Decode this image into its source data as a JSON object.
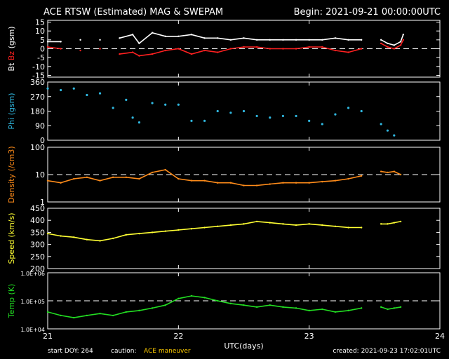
{
  "header": {
    "title": "ACE RTSW (Estimated) MAG & SWEPAM",
    "begin": "Begin: 2021-09-21 00:00:00UTC"
  },
  "footer": {
    "start_doy_label": "start DOY: 264",
    "caution_label": "caution:",
    "caution_text": "ACE maneuver",
    "created": "created: 2021-09-23 17:02:01UTC"
  },
  "colors": {
    "background": "#000000",
    "axis": "#ffffff",
    "bt": "#ffffff",
    "bz": "#ff2020",
    "phi": "#30b8e0",
    "density": "#ff8c1a",
    "speed": "#ffff33",
    "temp": "#22dd22"
  },
  "chart_data": [
    {
      "type": "line",
      "panel": "mag-field",
      "ylabel_parts": [
        "Bt",
        "Bz",
        "(gsm)"
      ],
      "yticks": [
        15,
        10,
        5,
        0,
        -5,
        -10,
        -15
      ],
      "ylim": [
        -16,
        16
      ],
      "reference_line": 0,
      "xlim": [
        21,
        24
      ],
      "series": [
        {
          "name": "Bt",
          "color": "#ffffff",
          "x": [
            21.0,
            21.1,
            21.25,
            21.4,
            21.55,
            21.65,
            21.7,
            21.8,
            21.9,
            22.0,
            22.1,
            22.2,
            22.3,
            22.4,
            22.5,
            22.6,
            22.7,
            22.8,
            22.9,
            23.0,
            23.1,
            23.2,
            23.3,
            23.4,
            23.55,
            23.6,
            23.65,
            23.7,
            23.72
          ],
          "y": [
            4,
            4,
            5,
            5,
            6,
            8,
            3,
            9,
            7,
            7,
            8,
            6,
            6,
            5,
            6,
            5,
            5,
            5,
            5,
            5,
            5,
            6,
            5,
            5,
            5,
            3,
            2,
            4,
            8
          ]
        },
        {
          "name": "Bz",
          "color": "#ff2020",
          "x": [
            21.0,
            21.1,
            21.25,
            21.4,
            21.55,
            21.65,
            21.7,
            21.8,
            21.9,
            22.0,
            22.1,
            22.2,
            22.3,
            22.4,
            22.5,
            22.6,
            22.7,
            22.8,
            22.9,
            23.0,
            23.1,
            23.2,
            23.3,
            23.4,
            23.55,
            23.6,
            23.65,
            23.7,
            23.72
          ],
          "y": [
            1,
            0,
            -1,
            0,
            -3,
            -2,
            -4,
            -3,
            -1,
            0,
            -3,
            -1,
            -2,
            0,
            1,
            1,
            0,
            0,
            0,
            1,
            1,
            -1,
            -2,
            0,
            3,
            1,
            0,
            2,
            5
          ]
        }
      ]
    },
    {
      "type": "scatter",
      "panel": "phi",
      "ylabel": "Phi (gsm)",
      "yticks": [
        360,
        270,
        180,
        90,
        0
      ],
      "ylim": [
        0,
        360
      ],
      "xlim": [
        21,
        24
      ],
      "series": [
        {
          "name": "Phi",
          "color": "#30b8e0",
          "x": [
            21.0,
            21.1,
            21.2,
            21.3,
            21.4,
            21.5,
            21.6,
            21.65,
            21.7,
            21.8,
            21.9,
            22.0,
            22.1,
            22.2,
            22.3,
            22.4,
            22.5,
            22.6,
            22.7,
            22.8,
            22.9,
            23.0,
            23.1,
            23.2,
            23.3,
            23.4,
            23.55,
            23.6,
            23.65
          ],
          "y": [
            320,
            310,
            320,
            280,
            290,
            200,
            250,
            140,
            110,
            230,
            220,
            220,
            120,
            120,
            180,
            170,
            180,
            150,
            140,
            150,
            150,
            120,
            100,
            160,
            200,
            180,
            100,
            60,
            30
          ]
        }
      ]
    },
    {
      "type": "line",
      "panel": "density",
      "ylabel": "Density (/cm3)",
      "yticks": [
        "100",
        "10",
        "1"
      ],
      "ylim": [
        1,
        100
      ],
      "yscale": "log",
      "reference_line": 10,
      "xlim": [
        21,
        24
      ],
      "series": [
        {
          "name": "Density",
          "color": "#ff8c1a",
          "x": [
            21.0,
            21.1,
            21.2,
            21.3,
            21.4,
            21.5,
            21.6,
            21.7,
            21.8,
            21.9,
            22.0,
            22.1,
            22.2,
            22.3,
            22.4,
            22.5,
            22.6,
            22.7,
            22.8,
            22.9,
            23.0,
            23.1,
            23.2,
            23.3,
            23.4,
            23.55,
            23.6,
            23.65,
            23.7
          ],
          "y": [
            6,
            5,
            7,
            8,
            6,
            8,
            8,
            7,
            12,
            15,
            7,
            6,
            6,
            5,
            5,
            4,
            4,
            4.5,
            5,
            5,
            5,
            5.5,
            6,
            7,
            9,
            13,
            12,
            13,
            10
          ]
        }
      ]
    },
    {
      "type": "line",
      "panel": "speed",
      "ylabel": "Speed (km/s)",
      "yticks": [
        450,
        400,
        350,
        300,
        250,
        200
      ],
      "ylim": [
        200,
        450
      ],
      "xlim": [
        21,
        24
      ],
      "series": [
        {
          "name": "Speed",
          "color": "#ffff33",
          "x": [
            21.0,
            21.1,
            21.2,
            21.3,
            21.4,
            21.5,
            21.6,
            21.7,
            21.8,
            21.9,
            22.0,
            22.1,
            22.2,
            22.3,
            22.4,
            22.5,
            22.6,
            22.7,
            22.8,
            22.9,
            23.0,
            23.1,
            23.2,
            23.3,
            23.4,
            23.55,
            23.6,
            23.65,
            23.7
          ],
          "y": [
            345,
            335,
            330,
            320,
            315,
            325,
            340,
            345,
            350,
            355,
            360,
            365,
            370,
            375,
            380,
            385,
            395,
            390,
            385,
            380,
            385,
            380,
            375,
            370,
            370,
            385,
            385,
            390,
            395
          ]
        }
      ]
    },
    {
      "type": "line",
      "panel": "temp",
      "ylabel": "Temp (K)",
      "yticks": [
        "1.0E+06",
        "1.0E+05",
        "1.0E+04"
      ],
      "ylim": [
        10000,
        1000000
      ],
      "yscale": "log",
      "reference_line": 100000,
      "xlim": [
        21,
        24
      ],
      "xticks": [
        21,
        22,
        23,
        24
      ],
      "xlabel": "UTC(days)",
      "series": [
        {
          "name": "Temp",
          "color": "#22dd22",
          "x": [
            21.0,
            21.1,
            21.2,
            21.3,
            21.4,
            21.5,
            21.6,
            21.7,
            21.8,
            21.9,
            22.0,
            22.1,
            22.2,
            22.3,
            22.4,
            22.5,
            22.6,
            22.7,
            22.8,
            22.9,
            23.0,
            23.1,
            23.2,
            23.3,
            23.4,
            23.55,
            23.6,
            23.65,
            23.7
          ],
          "y": [
            40000,
            30000,
            25000,
            30000,
            35000,
            30000,
            40000,
            45000,
            55000,
            70000,
            120000,
            150000,
            130000,
            100000,
            80000,
            70000,
            60000,
            70000,
            60000,
            55000,
            45000,
            50000,
            40000,
            45000,
            55000,
            60000,
            50000,
            55000,
            60000
          ]
        }
      ]
    }
  ]
}
